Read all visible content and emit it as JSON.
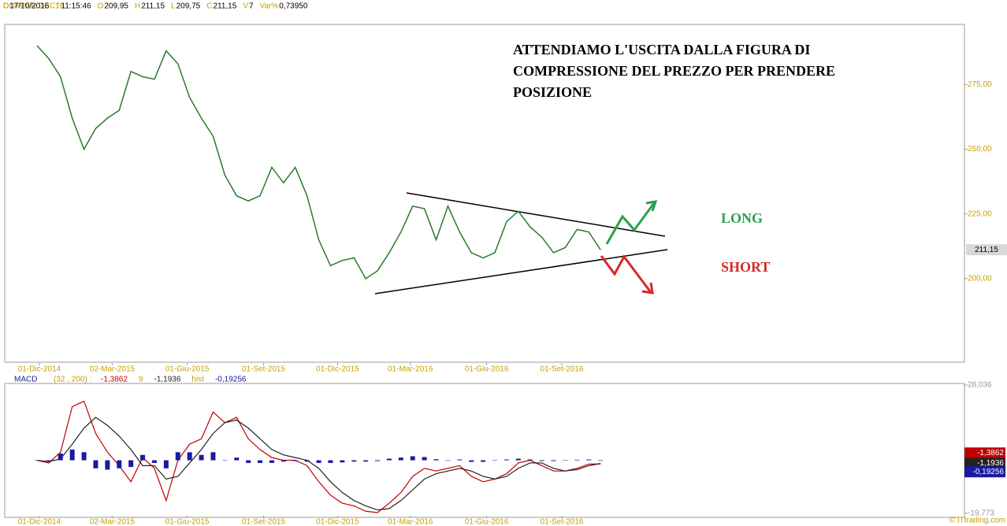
{
  "header": {
    "symbol": "COPPER DEC16",
    "items": [
      [
        "D",
        "17/10/2016"
      ],
      [
        "T",
        "11:15:46"
      ],
      [
        "O",
        "209,95"
      ],
      [
        "H",
        "211,15"
      ],
      [
        "L",
        "209,75"
      ],
      [
        "C",
        "211,15"
      ],
      [
        "V",
        "7"
      ],
      [
        "Var%",
        "0,73950"
      ]
    ]
  },
  "chart_data": [
    {
      "type": "line",
      "values": [
        290,
        285,
        278,
        262,
        250,
        258,
        262,
        265,
        280,
        278,
        277,
        288,
        283,
        270,
        262,
        255,
        240,
        232,
        230,
        232,
        243,
        237,
        243,
        232,
        215,
        205,
        207,
        208,
        200,
        203,
        210,
        218,
        228,
        227,
        215,
        228,
        218,
        210,
        208,
        210,
        222,
        226,
        220,
        216,
        210,
        212,
        219,
        218,
        211.15
      ],
      "color": "#2a7a2a",
      "xlim": [
        -2.75,
        79
      ],
      "xticks": [
        {
          "value": 0.2,
          "label": "01-Dic-2014"
        },
        {
          "value": 6.4,
          "label": "02-Mar-2015"
        },
        {
          "value": 12.8,
          "label": "01-Giu-2015"
        },
        {
          "value": 19.3,
          "label": "01-Set-2015"
        },
        {
          "value": 25.6,
          "label": "01-Dic-2015"
        },
        {
          "value": 31.8,
          "label": "01-Mar-2016"
        },
        {
          "value": 38.3,
          "label": "01-Giu-2016"
        },
        {
          "value": 44.7,
          "label": "01-Set-2016"
        }
      ],
      "ylim": [
        167.7,
        298.2
      ],
      "yticks": [
        {
          "value": 200,
          "label": "200,00"
        },
        {
          "value": 225,
          "label": "225,00"
        },
        {
          "value": 250,
          "label": "250,00"
        },
        {
          "value": 275,
          "label": "275,00"
        }
      ]
    },
    {
      "type": "macd",
      "params": "(32 , 200) :",
      "ylim": [
        -21.27,
        28.63
      ],
      "yticks": [
        {
          "value": 28.036,
          "label": "28,036"
        },
        {
          "value": -19.773,
          "label": "-19,773"
        }
      ],
      "series": [
        {
          "name": "MACD",
          "color": "#c00000",
          "last_label": "-1,3862",
          "values": [
            0,
            -1,
            3,
            20,
            22,
            10,
            3,
            -2,
            -8,
            1,
            -3,
            -15,
            0,
            6,
            8,
            18,
            14,
            16,
            8,
            4,
            1,
            0,
            0,
            -2,
            -8,
            -13,
            -16,
            -17,
            -19,
            -19.5,
            -16,
            -12,
            -6,
            -3,
            -4,
            -3,
            -2,
            -6,
            -8,
            -7,
            -5,
            -1,
            0,
            -2,
            -4,
            -4,
            -3,
            -1.4,
            -1.3862
          ]
        },
        {
          "name": "9",
          "color": "#222222",
          "last_label": "-1,1936",
          "values": [
            0,
            -0.5,
            0.5,
            6,
            12,
            16,
            13,
            9,
            4,
            -2,
            -2,
            -7,
            -6,
            -1,
            4,
            10,
            14,
            15,
            12,
            8,
            4,
            2,
            1,
            0,
            -3,
            -8,
            -12,
            -15,
            -17,
            -18.5,
            -18,
            -15,
            -11,
            -7,
            -5,
            -4,
            -3,
            -4,
            -6,
            -7,
            -6,
            -3,
            -1,
            -1,
            -3,
            -4,
            -3.5,
            -2,
            -1.1936
          ]
        },
        {
          "name": "hist",
          "color": "#1a1aa0",
          "kind": "bar",
          "last_label": "-0,19256",
          "values": [
            0,
            -0.5,
            2.5,
            4,
            3,
            -3,
            -3.5,
            -3,
            -2.5,
            2,
            -1,
            -3,
            3,
            3,
            2,
            3,
            0,
            1,
            -1,
            -1,
            -1,
            -0.5,
            -0.3,
            -0.5,
            -1,
            -1,
            -0.8,
            -0.5,
            -0.5,
            -0.3,
            0.6,
            1,
            1.5,
            1.2,
            0.4,
            0,
            0.3,
            -0.6,
            -0.6,
            0,
            0.3,
            0.6,
            0.3,
            -0.3,
            -0.3,
            0,
            0.2,
            0.3,
            -0.19256
          ]
        }
      ]
    }
  ],
  "annotations": {
    "note": "ATTENDIAMO L'USCITA DALLA FIGURA DI COMPRESSIONE DEL PREZZO PER PRENDERE POSIZIONE",
    "long": "LONG",
    "short": "SHORT"
  },
  "footer": "© ITtrading.com"
}
